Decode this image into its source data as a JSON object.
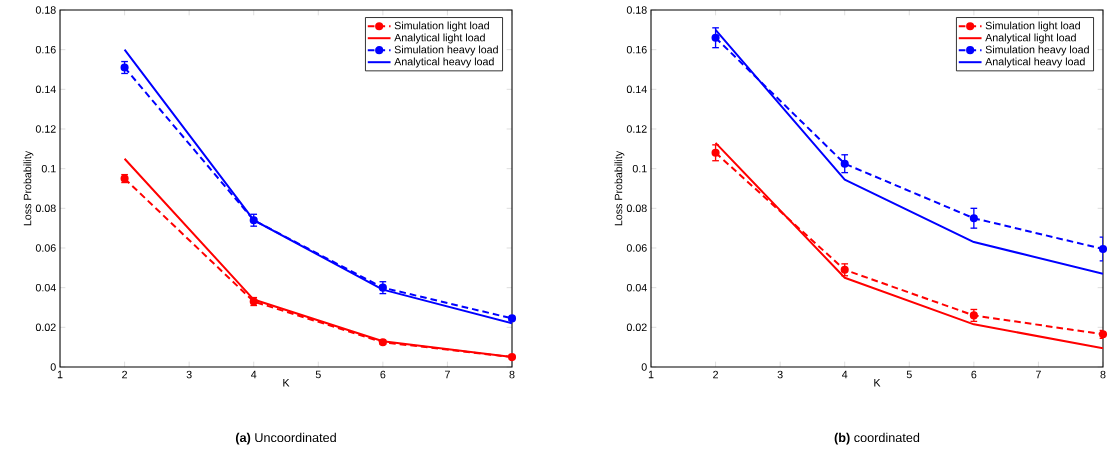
{
  "chart_data": [
    {
      "type": "line",
      "xlabel": "K",
      "ylabel": "Loss Probability",
      "annotations": [
        "**(a)** Uncoordinated"
      ],
      "x": [
        2,
        4,
        6,
        8
      ],
      "xlim": [
        1,
        8
      ],
      "ylim": [
        0,
        0.18
      ],
      "xticks": [
        1,
        2,
        3,
        4,
        5,
        6,
        7,
        8
      ],
      "yticks": [
        0,
        0.02,
        0.04,
        0.06,
        0.08,
        0.1,
        0.12,
        0.14,
        0.16,
        0.18
      ],
      "legend": "top right",
      "grid": false,
      "series": [
        {
          "name": "Simulation light load",
          "color": "#ff0000",
          "marker": "circle",
          "line_style": "dashed",
          "values": [
            0.095,
            0.033,
            0.0125,
            0.005
          ],
          "errors": [
            0.002,
            0.002,
            0.001,
            0.001
          ]
        },
        {
          "name": "Analytical light load",
          "color": "#ff0000",
          "marker": "none",
          "line_style": "solid",
          "values": [
            0.105,
            0.034,
            0.013,
            0.005
          ]
        },
        {
          "name": "Simulation heavy load",
          "color": "#0000ff",
          "marker": "circle",
          "line_style": "dashed",
          "values": [
            0.151,
            0.074,
            0.04,
            0.0245
          ],
          "errors": [
            0.003,
            0.003,
            0.003,
            0.001
          ]
        },
        {
          "name": "Analytical heavy load",
          "color": "#0000ff",
          "marker": "none",
          "line_style": "solid",
          "values": [
            0.16,
            0.074,
            0.039,
            0.022
          ]
        }
      ]
    },
    {
      "type": "line",
      "xlabel": "K",
      "ylabel": "Loss Probability",
      "annotations": [
        "**(b)** coordinated"
      ],
      "x": [
        2,
        4,
        6,
        8
      ],
      "xlim": [
        1,
        8
      ],
      "ylim": [
        0,
        0.18
      ],
      "xticks": [
        1,
        2,
        3,
        4,
        5,
        6,
        7,
        8
      ],
      "yticks": [
        0,
        0.02,
        0.04,
        0.06,
        0.08,
        0.1,
        0.12,
        0.14,
        0.16,
        0.18
      ],
      "legend": "top right",
      "grid": false,
      "series": [
        {
          "name": "Simulation light load",
          "color": "#ff0000",
          "marker": "circle",
          "line_style": "dashed",
          "values": [
            0.108,
            0.049,
            0.026,
            0.0165
          ],
          "errors": [
            0.004,
            0.003,
            0.003,
            0.002
          ]
        },
        {
          "name": "Analytical light load",
          "color": "#ff0000",
          "marker": "none",
          "line_style": "solid",
          "values": [
            0.113,
            0.045,
            0.0215,
            0.0095
          ]
        },
        {
          "name": "Simulation heavy load",
          "color": "#0000ff",
          "marker": "circle",
          "line_style": "dashed",
          "values": [
            0.166,
            0.1025,
            0.075,
            0.0595
          ],
          "errors": [
            0.005,
            0.0045,
            0.005,
            0.006
          ]
        },
        {
          "name": "Analytical heavy load",
          "color": "#0000ff",
          "marker": "none",
          "line_style": "solid",
          "values": [
            0.17,
            0.0945,
            0.063,
            0.047
          ]
        }
      ]
    }
  ]
}
